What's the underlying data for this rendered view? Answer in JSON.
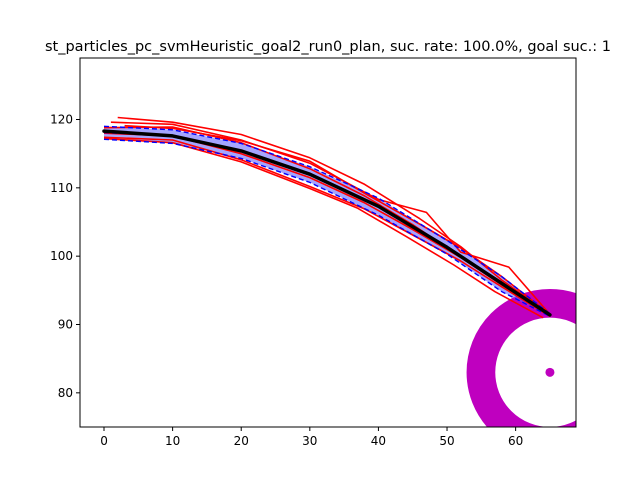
{
  "chart_data": {
    "type": "line",
    "title": "st_particles_pc_svmHeuristic_goal2_run0_plan, suc. rate: 100.0%, goal suc.: 1",
    "xlabel": "",
    "ylabel": "",
    "xlim": [
      -3.5,
      68.8
    ],
    "ylim": [
      75,
      129
    ],
    "xticks": [
      0,
      10,
      20,
      30,
      40,
      50,
      60
    ],
    "yticks": [
      80,
      90,
      100,
      110,
      120
    ],
    "grid": false,
    "colors": {
      "particles": "#ff0000",
      "planned": "#0000ff",
      "planned_fill": "#5b5bff",
      "mean": "#000000",
      "goal": "#bf00bf"
    },
    "goal": {
      "center": [
        65,
        83
      ],
      "inner_radius": 8,
      "outer_radius": 12.2
    },
    "series": [
      {
        "kind": "particles",
        "lines": [
          {
            "x": [
              2,
              10,
              20,
              30,
              38,
              46,
              52,
              58,
              65
            ],
            "y": [
              120.3,
              119.6,
              117.8,
              114.4,
              110.5,
              105.5,
              101.4,
              96.5,
              91.5
            ]
          },
          {
            "x": [
              1,
              10,
              20,
              30,
              40,
              47,
              52,
              59,
              65
            ],
            "y": [
              119.6,
              119.3,
              117.0,
              113.6,
              108.3,
              106.4,
              100.6,
              98.4,
              91.5
            ]
          },
          {
            "x": [
              0,
              10,
              20,
              30,
              38,
              45,
              52,
              58,
              65
            ],
            "y": [
              118.8,
              118.9,
              116.6,
              112.8,
              108.8,
              104.6,
              99.9,
              96.2,
              91.4
            ]
          },
          {
            "x": [
              0,
              10,
              20,
              30,
              38,
              45,
              52,
              58,
              65
            ],
            "y": [
              118.0,
              117.6,
              115.0,
              111.5,
              107.8,
              103.9,
              99.8,
              95.8,
              91.3
            ]
          },
          {
            "x": [
              0,
              10,
              20,
              30,
              38,
              45,
              52,
              58,
              65
            ],
            "y": [
              117.4,
              117.0,
              114.1,
              110.2,
              106.9,
              103.1,
              99.3,
              95.5,
              91.2
            ]
          },
          {
            "x": [
              0,
              10,
              20,
              30,
              37,
              44,
              51,
              57,
              64
            ],
            "y": [
              117.2,
              116.6,
              113.8,
              109.9,
              107.0,
              102.9,
              98.7,
              94.8,
              91.0
            ]
          },
          {
            "x": [
              3,
              10,
              20,
              30,
              38,
              46,
              52,
              58,
              65
            ],
            "y": [
              119.1,
              118.7,
              116.9,
              113.9,
              109.2,
              104.7,
              101.2,
              97.0,
              91.5
            ]
          }
        ]
      },
      {
        "kind": "planned",
        "lines": [
          {
            "x": [
              0,
              10,
              20,
              30,
              40,
              50,
              58,
              65
            ],
            "y": [
              117.1,
              116.5,
              114.3,
              110.8,
              106.0,
              100.3,
              94.8,
              91.2
            ]
          },
          {
            "x": [
              0,
              10,
              20,
              30,
              40,
              50,
              58,
              65
            ],
            "y": [
              119.0,
              118.5,
              116.5,
              113.1,
              108.5,
              102.3,
              97.0,
              91.6
            ]
          },
          {
            "x": [
              0,
              10,
              20,
              30,
              40,
              50,
              58,
              65
            ],
            "y": [
              118.1,
              117.6,
              115.4,
              112.0,
              107.3,
              101.3,
              95.9,
              91.4
            ]
          }
        ]
      },
      {
        "kind": "mean",
        "x": [
          0,
          10,
          20,
          30,
          40,
          50,
          58,
          65
        ],
        "y": [
          118.3,
          117.6,
          115.4,
          112.0,
          107.3,
          101.3,
          96.0,
          91.4
        ]
      }
    ]
  }
}
